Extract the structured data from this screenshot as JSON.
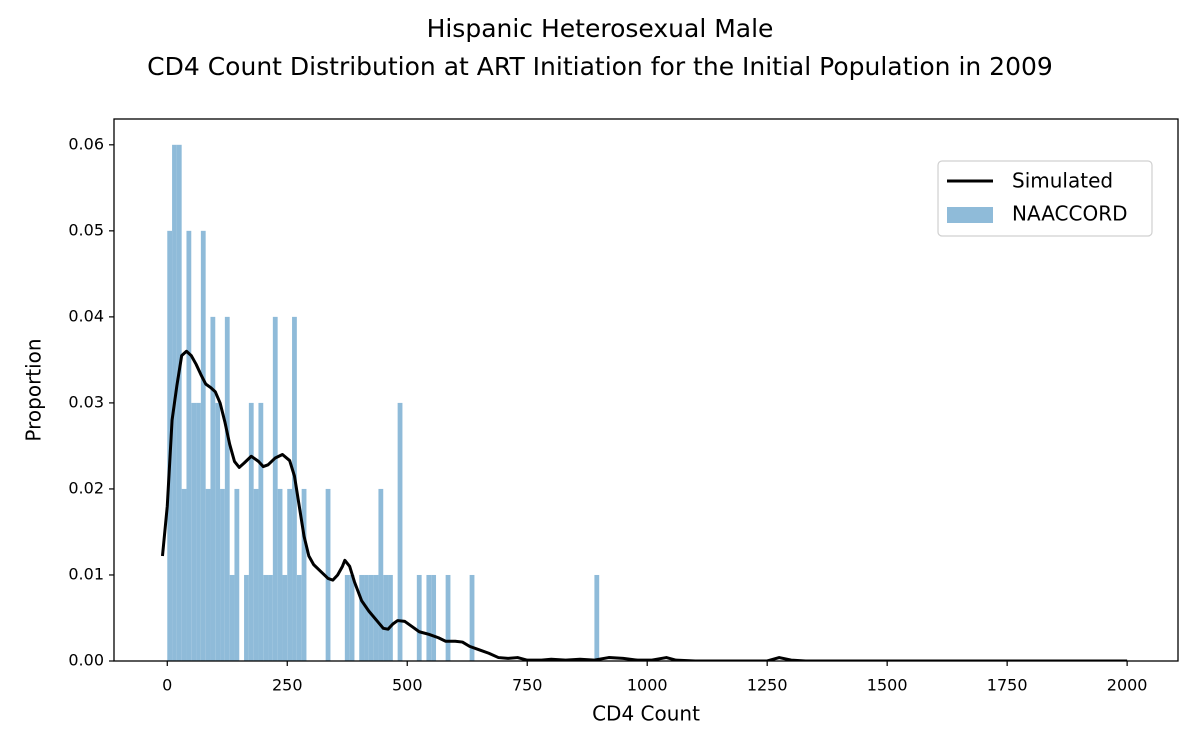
{
  "chart_data": {
    "type": "histogram",
    "title": [
      "Hispanic Heterosexual Male",
      "CD4 Count Distribution at ART Initiation for the Initial Population in 2009"
    ],
    "x_label": "CD4 Count",
    "y_label": "Proportion",
    "xlim": [
      -111,
      2106
    ],
    "ylim": [
      0,
      0.063
    ],
    "xticks": [
      0,
      250,
      500,
      750,
      1000,
      1250,
      1500,
      1750,
      2000
    ],
    "yticks": [
      {
        "value": 0,
        "label": "0.00"
      },
      0.01,
      0.02,
      0.03,
      0.04,
      0.05,
      0.06
    ],
    "legend": "upper right",
    "line": {
      "name": "Simulated",
      "color": "#000000",
      "x": [
        -10,
        0,
        10,
        20,
        30,
        40,
        50,
        60,
        70,
        80,
        90,
        100,
        110,
        120,
        130,
        140,
        150,
        160,
        175,
        190,
        200,
        210,
        225,
        240,
        255,
        265,
        275,
        285,
        295,
        305,
        320,
        335,
        345,
        355,
        365,
        370,
        380,
        390,
        405,
        420,
        435,
        450,
        460,
        470,
        480,
        495,
        510,
        525,
        545,
        565,
        580,
        600,
        615,
        630,
        650,
        670,
        690,
        710,
        730,
        750,
        780,
        800,
        830,
        860,
        890,
        920,
        950,
        980,
        1010,
        1040,
        1060,
        1100,
        1250,
        1275,
        1300,
        1330,
        2000
      ],
      "values": [
        0.0122,
        0.018,
        0.028,
        0.032,
        0.0355,
        0.036,
        0.0355,
        0.0345,
        0.0333,
        0.0322,
        0.0318,
        0.0313,
        0.03,
        0.0278,
        0.0252,
        0.0232,
        0.0225,
        0.023,
        0.0238,
        0.0232,
        0.0226,
        0.0228,
        0.0236,
        0.024,
        0.0233,
        0.0215,
        0.018,
        0.0145,
        0.0122,
        0.0112,
        0.0104,
        0.0096,
        0.0094,
        0.01,
        0.011,
        0.0117,
        0.011,
        0.0092,
        0.007,
        0.0058,
        0.0048,
        0.0038,
        0.0037,
        0.0043,
        0.0047,
        0.0046,
        0.004,
        0.0034,
        0.0031,
        0.0027,
        0.0023,
        0.0023,
        0.0022,
        0.0017,
        0.0013,
        0.0009,
        0.0004,
        0.0003,
        0.0004,
        0.0001,
        0.0001,
        0.0002,
        0.0001,
        0.0002,
        0.0001,
        0.0004,
        0.0003,
        0.0001,
        0.0001,
        0.0004,
        0.0001,
        0,
        0,
        0.0004,
        0.0001,
        0,
        0
      ]
    },
    "histogram": {
      "name": "NAACCORD",
      "color": "#8fbbd9",
      "bins": [
        0,
        10,
        20,
        30,
        40,
        50,
        60,
        70,
        80,
        90,
        100,
        110,
        120,
        130,
        140,
        150,
        160,
        170,
        180,
        190,
        200,
        210,
        220,
        230,
        240,
        250,
        260,
        270,
        280,
        290,
        300,
        310,
        320,
        330,
        340,
        350,
        360,
        370,
        380,
        390,
        400,
        410,
        420,
        430,
        440,
        450,
        460,
        470,
        480,
        490,
        500,
        510,
        520,
        530,
        540,
        550,
        560,
        570,
        580,
        590,
        600,
        610,
        620,
        630,
        640,
        650,
        660,
        670,
        680,
        690,
        700,
        710,
        720,
        730,
        740,
        750,
        760,
        770,
        780,
        790,
        800,
        810,
        820,
        830,
        840,
        850,
        860,
        870,
        880,
        890,
        900
      ],
      "counts": [
        0.05,
        0.06,
        0.06,
        0.02,
        0.05,
        0.03,
        0.03,
        0.05,
        0.02,
        0.04,
        0.03,
        0.02,
        0.04,
        0.01,
        0.02,
        0,
        0.01,
        0.03,
        0.02,
        0.03,
        0.01,
        0.01,
        0.04,
        0.02,
        0.01,
        0.02,
        0.04,
        0.01,
        0.02,
        0,
        0,
        0,
        0,
        0.02,
        0,
        0,
        0,
        0.01,
        0.01,
        0,
        0.01,
        0.01,
        0.01,
        0.01,
        0.02,
        0.01,
        0.01,
        0,
        0.03,
        0,
        0,
        0,
        0.01,
        0,
        0.01,
        0.01,
        0,
        0,
        0.01,
        0,
        0,
        0,
        0,
        0.01,
        0,
        0,
        0,
        0,
        0,
        0,
        0,
        0,
        0,
        0,
        0,
        0,
        0,
        0,
        0,
        0,
        0,
        0,
        0,
        0,
        0,
        0,
        0,
        0,
        0,
        0.01
      ]
    }
  }
}
